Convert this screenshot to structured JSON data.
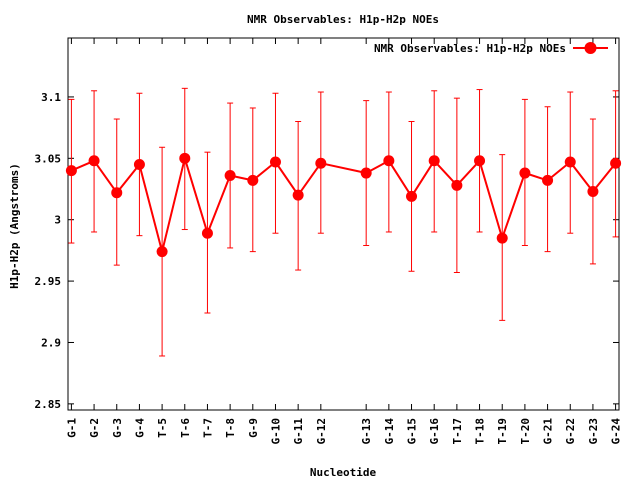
{
  "chart_data": {
    "type": "line",
    "title": "NMR Observables: H1p-H2p NOEs",
    "xlabel": "Nucleotide",
    "ylabel": "H1p-H2p (Angstroms)",
    "ylim": [
      2.845,
      3.148
    ],
    "yticks": [
      2.85,
      2.9,
      2.95,
      3,
      3.05,
      3.1
    ],
    "ytick_labels": [
      "2.85",
      "2.9",
      "2.95",
      "3",
      "3.05",
      "3.1"
    ],
    "grid": false,
    "legend_position": "top-right",
    "color": "#ff0000",
    "categories": [
      "G-1",
      "G-2",
      "G-3",
      "G-4",
      "T-5",
      "T-6",
      "T-7",
      "T-8",
      "G-9",
      "G-10",
      "G-11",
      "G-12",
      "G-13",
      "G-14",
      "G-15",
      "G-16",
      "T-17",
      "T-18",
      "T-19",
      "T-20",
      "G-21",
      "G-22",
      "G-23",
      "G-24"
    ],
    "x": [
      1,
      2,
      3,
      4,
      5,
      6,
      7,
      8,
      9,
      10,
      11,
      12,
      14,
      15,
      16,
      17,
      18,
      19,
      20,
      21,
      22,
      23,
      24,
      25
    ],
    "series": [
      {
        "name": "NMR Observables: H1p-H2p NOEs",
        "values": [
          3.04,
          3.048,
          3.022,
          3.045,
          2.974,
          3.05,
          2.989,
          3.036,
          3.032,
          3.047,
          3.02,
          3.046,
          3.038,
          3.048,
          3.019,
          3.048,
          3.028,
          3.048,
          2.985,
          3.038,
          3.032,
          3.047,
          3.023,
          3.046
        ],
        "err_low": [
          2.981,
          2.99,
          2.963,
          2.987,
          2.889,
          2.992,
          2.924,
          2.977,
          2.974,
          2.989,
          2.959,
          2.989,
          2.979,
          2.99,
          2.958,
          2.99,
          2.957,
          2.99,
          2.918,
          2.979,
          2.974,
          2.989,
          2.964,
          2.986
        ],
        "err_high": [
          3.098,
          3.105,
          3.082,
          3.103,
          3.059,
          3.107,
          3.055,
          3.095,
          3.091,
          3.103,
          3.08,
          3.104,
          3.097,
          3.104,
          3.08,
          3.105,
          3.099,
          3.106,
          3.053,
          3.098,
          3.092,
          3.104,
          3.082,
          3.105
        ]
      }
    ]
  }
}
